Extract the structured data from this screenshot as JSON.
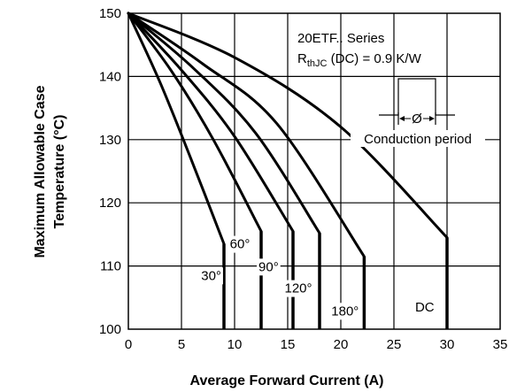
{
  "chart_data": {
    "type": "line",
    "xlabel": "Average Forward Current (A)",
    "ylabel_lines": [
      "Maximum Allowable Case",
      "Temperature (°C)"
    ],
    "xlim": [
      0,
      35
    ],
    "ylim": [
      100,
      150
    ],
    "x_ticks": [
      0,
      5,
      10,
      15,
      20,
      25,
      30,
      35
    ],
    "y_ticks": [
      100,
      110,
      120,
      130,
      140,
      150
    ],
    "grid": true,
    "annotation": {
      "series_name": "20ETF.. Series",
      "rth_prefix": "R",
      "rth_sub": "thJC",
      "rth_suffix": " (DC) = 0.9 K/W",
      "phi_label": "Ø",
      "conduction_label": "Conduction period"
    },
    "series": [
      {
        "name": "30°",
        "x": [
          0,
          3,
          6,
          9
        ],
        "y": [
          150,
          139,
          126.5,
          113.5
        ],
        "drop_to": 100
      },
      {
        "name": "60°",
        "x": [
          0,
          4,
          8,
          12.5
        ],
        "y": [
          150,
          141,
          130,
          115.5
        ],
        "drop_to": 100
      },
      {
        "name": "90°",
        "x": [
          0,
          5,
          10,
          15.5
        ],
        "y": [
          150,
          141,
          130.5,
          115.5
        ],
        "drop_to": 100
      },
      {
        "name": "120°",
        "x": [
          0,
          6,
          12,
          18
        ],
        "y": [
          150,
          141.5,
          131,
          115.2
        ],
        "drop_to": 100
      },
      {
        "name": "180°",
        "x": [
          0,
          7,
          14,
          22.2
        ],
        "y": [
          150,
          142,
          132.5,
          111.5
        ],
        "drop_to": 100
      },
      {
        "name": "DC",
        "x": [
          0,
          10,
          20,
          30
        ],
        "y": [
          150,
          143,
          132,
          114.5
        ],
        "drop_to": 100
      }
    ],
    "series_labels": [
      {
        "text": "30°",
        "x": 7.8,
        "y": 107.8
      },
      {
        "text": "60°",
        "x": 10.5,
        "y": 112.8
      },
      {
        "text": "90°",
        "x": 13.2,
        "y": 109.2
      },
      {
        "text": "120°",
        "x": 16.0,
        "y": 105.8
      },
      {
        "text": "180°",
        "x": 20.4,
        "y": 102.2
      },
      {
        "text": "DC",
        "x": 27.9,
        "y": 102.8
      }
    ]
  }
}
